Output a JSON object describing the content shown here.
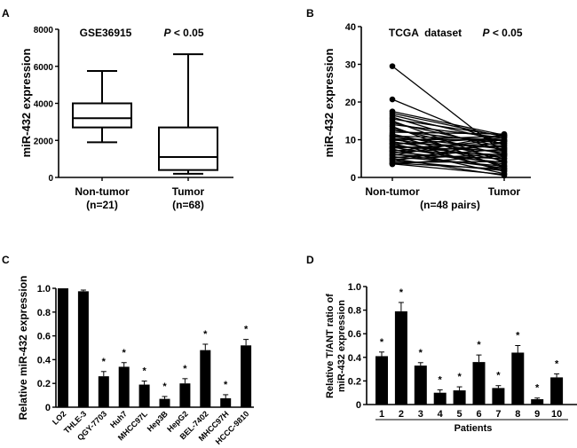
{
  "chart_data": [
    {
      "panel": "A",
      "type": "box",
      "title": "GSE36915",
      "annotation": "P < 0.05",
      "ylabel": "miR-432 expression",
      "ylim": [
        0,
        8000
      ],
      "yticks": [
        0,
        2000,
        4000,
        6000,
        8000
      ],
      "categories": [
        "Non-tumor",
        "Tumor"
      ],
      "category_sublabels": [
        "(n=21)",
        "(n=68)"
      ],
      "boxes": [
        {
          "min": 1900,
          "q1": 2700,
          "median": 3200,
          "q3": 4000,
          "max": 5750
        },
        {
          "min": 200,
          "q1": 400,
          "median": 1100,
          "q3": 2700,
          "max": 6650
        }
      ]
    },
    {
      "panel": "B",
      "type": "paired-line",
      "title": "TCGA  dataset",
      "annotation": "P < 0.05",
      "ylabel": "miR-432 expression",
      "ylim": [
        0,
        40
      ],
      "yticks": [
        0,
        10,
        20,
        30,
        40
      ],
      "categories": [
        "Non-tumor",
        "Tumor"
      ],
      "xsublabel": "(n=48 pairs)",
      "pairs": [
        [
          29.5,
          6.5
        ],
        [
          20.7,
          8.5
        ],
        [
          17.5,
          11.2
        ],
        [
          17.0,
          10.8
        ],
        [
          16.5,
          9.5
        ],
        [
          16.0,
          7.0
        ],
        [
          15.5,
          11.0
        ],
        [
          15.0,
          4.0
        ],
        [
          14.5,
          8.0
        ],
        [
          14.0,
          10.5
        ],
        [
          13.5,
          2.5
        ],
        [
          13.0,
          6.0
        ],
        [
          12.5,
          9.0
        ],
        [
          12.0,
          11.5
        ],
        [
          11.5,
          5.0
        ],
        [
          11.2,
          3.0
        ],
        [
          11.0,
          10.0
        ],
        [
          10.8,
          7.5
        ],
        [
          10.5,
          1.5
        ],
        [
          10.2,
          9.8
        ],
        [
          10.0,
          6.5
        ],
        [
          9.8,
          11.0
        ],
        [
          9.5,
          4.5
        ],
        [
          9.2,
          8.0
        ],
        [
          9.0,
          2.0
        ],
        [
          8.8,
          10.5
        ],
        [
          8.5,
          5.5
        ],
        [
          8.2,
          7.0
        ],
        [
          8.0,
          3.5
        ],
        [
          7.8,
          9.0
        ],
        [
          7.5,
          1.0
        ],
        [
          7.2,
          6.0
        ],
        [
          7.0,
          10.0
        ],
        [
          6.8,
          4.0
        ],
        [
          6.5,
          8.5
        ],
        [
          6.2,
          2.5
        ],
        [
          6.0,
          5.0
        ],
        [
          5.8,
          11.3
        ],
        [
          5.5,
          3.0
        ],
        [
          5.2,
          7.5
        ],
        [
          5.0,
          0.5
        ],
        [
          4.8,
          6.2
        ],
        [
          4.5,
          1.8
        ],
        [
          4.3,
          9.5
        ],
        [
          4.0,
          4.2
        ],
        [
          3.8,
          2.2
        ],
        [
          3.6,
          0.8
        ],
        [
          3.5,
          5.8
        ]
      ]
    },
    {
      "panel": "C",
      "type": "bar",
      "ylabel": "Relative miR-432 expression",
      "ylim": [
        0,
        1.0
      ],
      "yticks": [
        "0",
        "0.2",
        "0.4",
        "0.6",
        "0.8",
        "1.0"
      ],
      "categories": [
        "LO2",
        "THLE-3",
        "QGY-7703",
        "Huh7",
        "MHCC97L",
        "Hep3B",
        "HepG2",
        "BEL-7402",
        "MHCC97H",
        "HCCC-9810"
      ],
      "values": [
        1.0,
        0.975,
        0.26,
        0.34,
        0.19,
        0.07,
        0.2,
        0.48,
        0.075,
        0.52
      ],
      "errors": [
        0,
        0.01,
        0.04,
        0.035,
        0.03,
        0.02,
        0.04,
        0.05,
        0.03,
        0.05
      ],
      "significant": [
        false,
        false,
        true,
        true,
        true,
        true,
        true,
        true,
        true,
        true
      ],
      "marker": "*"
    },
    {
      "panel": "D",
      "type": "bar",
      "ylabel": [
        "Relative T/ANT ratio of",
        "miR-432 expression"
      ],
      "xlabel": "Patients",
      "ylim": [
        0,
        1.0
      ],
      "yticks": [
        "0",
        "0.2",
        "0.4",
        "0.6",
        "0.8",
        "1.0"
      ],
      "categories": [
        "1",
        "2",
        "3",
        "4",
        "5",
        "6",
        "7",
        "8",
        "9",
        "10"
      ],
      "values": [
        0.41,
        0.79,
        0.33,
        0.1,
        0.12,
        0.36,
        0.14,
        0.44,
        0.045,
        0.23
      ],
      "errors": [
        0.035,
        0.075,
        0.025,
        0.025,
        0.03,
        0.06,
        0.02,
        0.06,
        0.01,
        0.03
      ],
      "significant": [
        true,
        true,
        true,
        true,
        true,
        true,
        true,
        true,
        true,
        true
      ],
      "marker": "*"
    }
  ],
  "panel_labels": [
    "A",
    "B",
    "C",
    "D"
  ]
}
